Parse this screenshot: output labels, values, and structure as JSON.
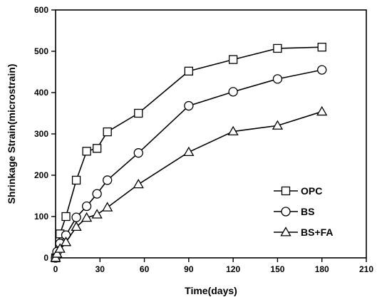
{
  "chart_data": {
    "type": "line",
    "title": "",
    "xlabel": "Time(days)",
    "ylabel": "Shrinkage Strain(microstrain)",
    "xlim": [
      0,
      210
    ],
    "ylim": [
      0,
      600
    ],
    "xticks": [
      0,
      30,
      60,
      90,
      120,
      150,
      180,
      210
    ],
    "yticks": [
      0,
      100,
      200,
      300,
      400,
      500,
      600
    ],
    "grid": false,
    "legend_position": "lower-right",
    "series": [
      {
        "name": "OPC",
        "marker": "square",
        "color": "#000000",
        "x": [
          0,
          3,
          7,
          14,
          21,
          28,
          35,
          56,
          90,
          120,
          150,
          180
        ],
        "y": [
          0,
          58,
          100,
          188,
          258,
          265,
          305,
          350,
          452,
          480,
          507,
          510
        ]
      },
      {
        "name": "BS",
        "marker": "circle",
        "color": "#000000",
        "x": [
          0,
          1,
          3,
          7,
          14,
          21,
          28,
          35,
          56,
          90,
          120,
          150,
          180
        ],
        "y": [
          0,
          15,
          35,
          55,
          98,
          125,
          155,
          188,
          254,
          368,
          402,
          433,
          455
        ]
      },
      {
        "name": "BS+FA",
        "marker": "triangle",
        "color": "#000000",
        "x": [
          0,
          1,
          3,
          7,
          14,
          21,
          28,
          35,
          56,
          90,
          120,
          150,
          180
        ],
        "y": [
          0,
          10,
          22,
          38,
          75,
          97,
          105,
          122,
          178,
          256,
          306,
          320,
          354
        ]
      }
    ]
  }
}
